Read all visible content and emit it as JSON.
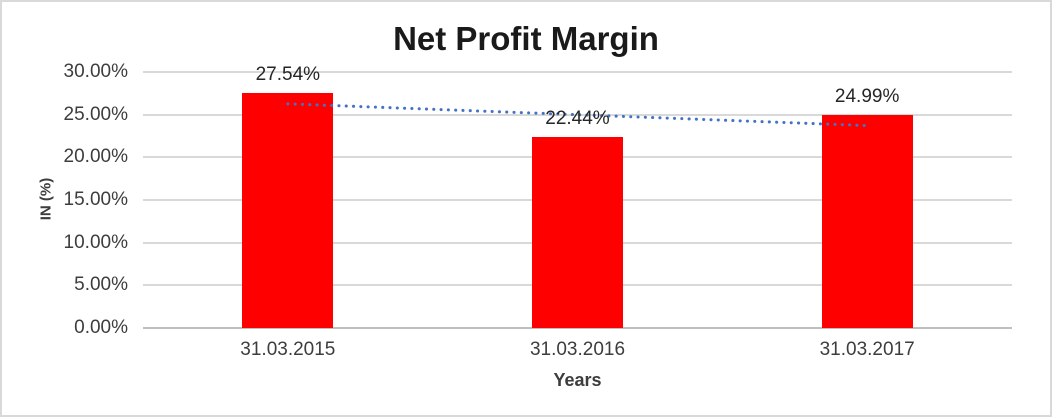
{
  "chart_data": {
    "type": "bar",
    "title": "Net Profit Margin",
    "xlabel": "Years",
    "ylabel": "IN (%)",
    "categories": [
      "31.03.2015",
      "31.03.2016",
      "31.03.2017"
    ],
    "series": [
      {
        "name": "Net Profit Margin",
        "values": [
          27.54,
          22.44,
          24.99
        ]
      }
    ],
    "data_labels": [
      "27.54%",
      "22.44%",
      "24.99%"
    ],
    "y_ticks": [
      {
        "value": 0,
        "label": "0.00%"
      },
      {
        "value": 5,
        "label": "5.00%"
      },
      {
        "value": 10,
        "label": "10.00%"
      },
      {
        "value": 15,
        "label": "15.00%"
      },
      {
        "value": 20,
        "label": "20.00%"
      },
      {
        "value": 25,
        "label": "25.00%"
      },
      {
        "value": 30,
        "label": "30.00%"
      }
    ],
    "ylim": [
      0,
      30
    ],
    "grid": true,
    "legend": "none",
    "trendline": {
      "type": "linear",
      "style": "dotted",
      "start_value": 26.27,
      "end_value": 23.72
    },
    "colors": {
      "bar": "#ff0000",
      "trendline": "#4472c4",
      "gridline": "#d9d9d9",
      "axis_line": "#bfbfbf",
      "tick_text": "#3d3d3d",
      "title_text": "#1a1a1a",
      "frame_border": "#d9d9d9",
      "background": "#ffffff"
    }
  }
}
